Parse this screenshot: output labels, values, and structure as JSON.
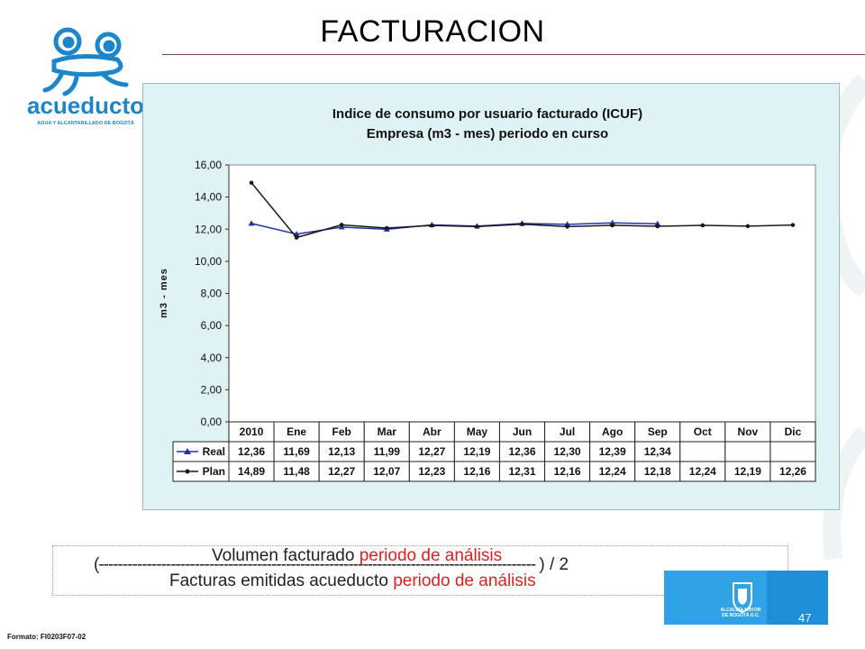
{
  "slide": {
    "title": "FACTURACION",
    "footer": "Formato: FI0203F07-02",
    "page_number": "47"
  },
  "logo": {
    "icon": "frog-mascot-icon",
    "name": "acueducto",
    "tagline": "AGUA Y ALCANTARILLADO DE BOGOTÁ",
    "brand_color": "#1b86c9"
  },
  "alcaldia": {
    "icon": "coat-of-arms-icon",
    "line1": "ALCALDÍA MAYOR",
    "line2": "DE BOGOTÁ D.C."
  },
  "formula": {
    "numerator_text": "Volumen facturado ",
    "numerator_highlight": "periodo de análisis",
    "fraction_line": "(-------------------------------------------------------------------------------------------",
    "suffix": ") / 2",
    "denominator_text": "Facturas emitidas acueducto ",
    "denominator_highlight": "periodo de análisis"
  },
  "chart_data": {
    "type": "line",
    "title": "Indice de consumo por usuario facturado (ICUF)",
    "subtitle": "Empresa (m3 - mes) periodo en curso",
    "xlabel": "",
    "ylabel": "m3 - mes",
    "ylim": [
      0,
      16
    ],
    "yticks": [
      "0,00",
      "2,00",
      "4,00",
      "6,00",
      "8,00",
      "10,00",
      "12,00",
      "14,00",
      "16,00"
    ],
    "categories": [
      "2010",
      "Ene",
      "Feb",
      "Mar",
      "Abr",
      "May",
      "Jun",
      "Jul",
      "Ago",
      "Sep",
      "Oct",
      "Nov",
      "Dic"
    ],
    "series": [
      {
        "name": "Real",
        "color": "#2233aa",
        "marker": "triangle",
        "values": [
          12.36,
          11.69,
          12.13,
          11.99,
          12.27,
          12.19,
          12.36,
          12.3,
          12.39,
          12.34,
          null,
          null,
          null
        ],
        "labels": [
          "12,36",
          "11,69",
          "12,13",
          "11,99",
          "12,27",
          "12,19",
          "12,36",
          "12,30",
          "12,39",
          "12,34",
          "",
          "",
          ""
        ]
      },
      {
        "name": "Plan",
        "color": "#1a1a1a",
        "marker": "diamond",
        "values": [
          14.89,
          11.48,
          12.27,
          12.07,
          12.23,
          12.16,
          12.31,
          12.16,
          12.24,
          12.18,
          12.24,
          12.19,
          12.26
        ],
        "labels": [
          "14,89",
          "11,48",
          "12,27",
          "12,07",
          "12,23",
          "12,16",
          "12,31",
          "12,16",
          "12,24",
          "12,18",
          "12,24",
          "12,19",
          "12,26"
        ]
      }
    ],
    "grid": false,
    "legend": "data-table-left"
  }
}
